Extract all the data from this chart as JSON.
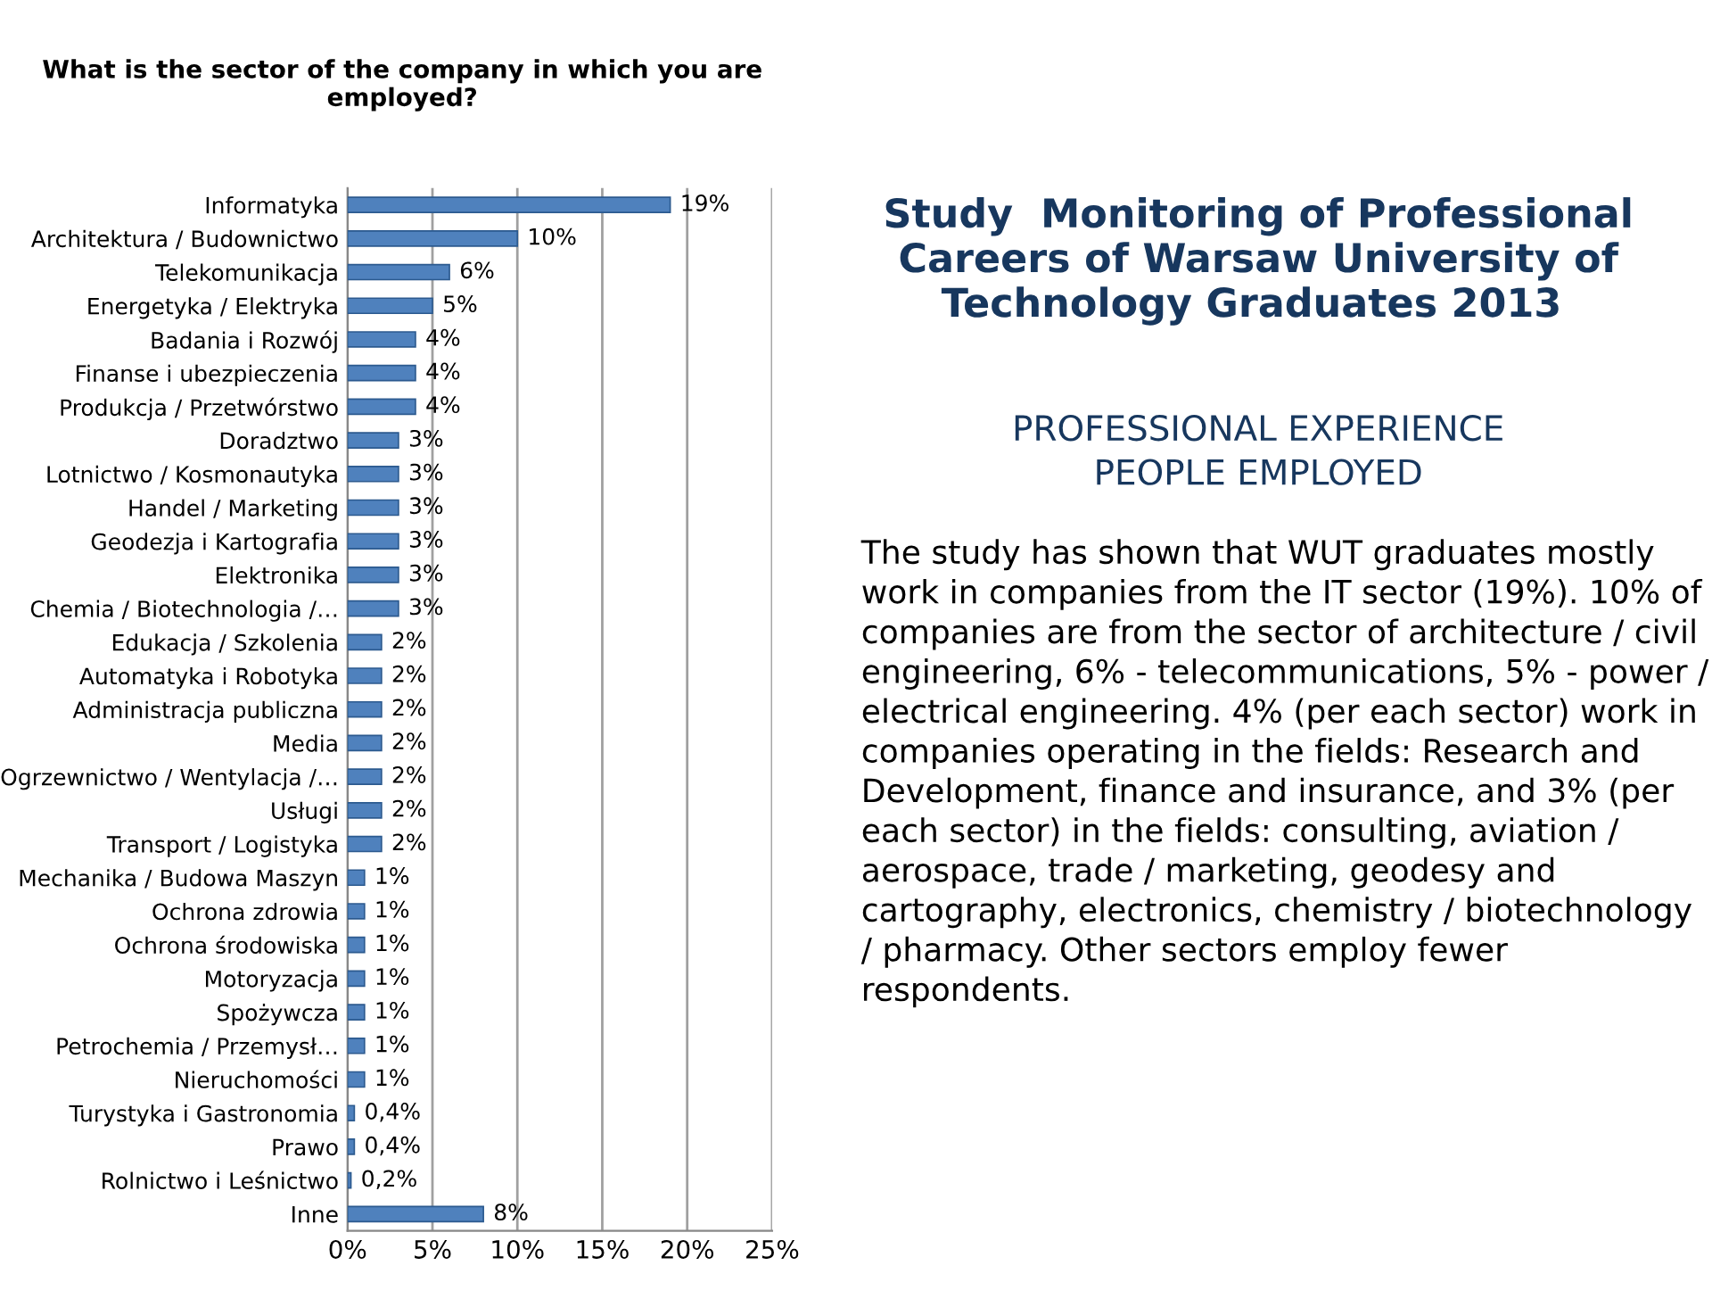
{
  "chart_data": [
    {
      "type": "bar",
      "orientation": "horizontal",
      "title": "What is the sector of the company in which you are employed?",
      "categories": [
        "Informatyka",
        "Architektura / Budownictwo",
        "Telekomunikacja",
        "Energetyka / Elektryka",
        "Badania i Rozwój",
        "Finanse i ubezpieczenia",
        "Produkcja / Przetwórstwo",
        "Doradztwo",
        "Lotnictwo / Kosmonautyka",
        "Handel / Marketing",
        "Geodezja i Kartografia",
        "Elektronika",
        "Chemia / Biotechnologia /…",
        "Edukacja / Szkolenia",
        "Automatyka i Robotyka",
        "Administracja publiczna",
        "Media",
        "Ogrzewnictwo / Wentylacja /…",
        "Usługi",
        "Transport / Logistyka",
        "Mechanika / Budowa Maszyn",
        "Ochrona zdrowia",
        "Ochrona środowiska",
        "Motoryzacja",
        "Spożywcza",
        "Petrochemia / Przemysł…",
        "Nieruchomości",
        "Turystyka i Gastronomia",
        "Prawo",
        "Rolnictwo i Leśnictwo",
        "Inne"
      ],
      "values": [
        19,
        10,
        6,
        5,
        4,
        4,
        4,
        3,
        3,
        3,
        3,
        3,
        3,
        2,
        2,
        2,
        2,
        2,
        2,
        2,
        1,
        1,
        1,
        1,
        1,
        1,
        1,
        0.4,
        0.4,
        0.2,
        8
      ],
      "value_labels": [
        "19%",
        "10%",
        "6%",
        "5%",
        "4%",
        "4%",
        "4%",
        "3%",
        "3%",
        "3%",
        "3%",
        "3%",
        "3%",
        "2%",
        "2%",
        "2%",
        "2%",
        "2%",
        "2%",
        "2%",
        "1%",
        "1%",
        "1%",
        "1%",
        "1%",
        "1%",
        "1%",
        "0,4%",
        "0,4%",
        "0,2%",
        "8%"
      ],
      "color": "#4f81bd",
      "xlim": [
        0,
        25
      ],
      "xticks": [
        {
          "value": 0,
          "label": "0%"
        },
        {
          "value": 5,
          "label": "5%"
        },
        {
          "value": 10,
          "label": "10%"
        },
        {
          "value": 15,
          "label": "15%"
        },
        {
          "value": 20,
          "label": "20%"
        },
        {
          "value": 25,
          "label": "25%"
        }
      ],
      "grid": "x"
    },
    {
      "type": "other",
      "title": "Study  Monitoring of Professional Careers of Warsaw University of Technology Graduates 2013 ",
      "subtitle": "PROFESSIONAL EXPERIENCE\nPEOPLE EMPLOYED",
      "annotations": [
        "The study has shown that WUT graduates mostly work in companies from the IT sector (19%). 10% of companies are from the sector of architecture / civil engineering, 6% - telecommunications, 5% - power / electrical engineering. 4% (per each sector) work in companies operating in the fields: Research and Development, finance and insurance, and 3% (per each sector) in the fields: consulting, aviation / aerospace, trade / marketing, geodesy and cartography, electronics, chemistry / biotechnology / pharmacy. Other sectors employ fewer respondents."
      ]
    }
  ]
}
